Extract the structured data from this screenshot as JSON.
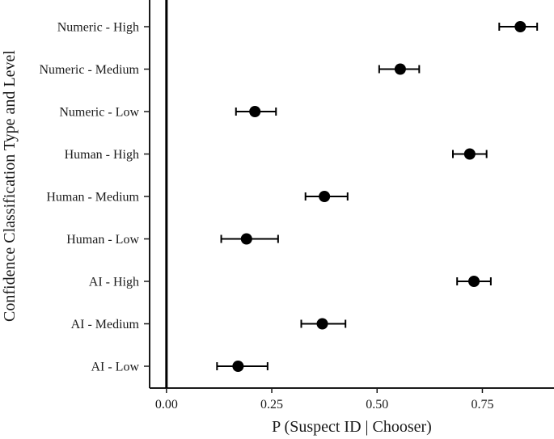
{
  "chart_data": {
    "type": "scatter",
    "subtype": "dot-whisker",
    "title": "",
    "xlabel": "P (Suspect ID | Chooser)",
    "ylabel": "Confidence Classification Type and Level",
    "xlim": [
      -0.04,
      0.92
    ],
    "xticks": [
      0.0,
      0.25,
      0.5,
      0.75
    ],
    "xtick_labels": [
      "0.00",
      "0.25",
      "0.50",
      "0.75"
    ],
    "reference_line_x": 0,
    "grid": false,
    "legend": "none",
    "categories": [
      "Numeric - High",
      "Numeric - Medium",
      "Numeric - Low",
      "Human - High",
      "Human - Medium",
      "Human - Low",
      "AI - High",
      "AI - Medium",
      "AI - Low"
    ],
    "values": [
      0.84,
      0.555,
      0.21,
      0.72,
      0.375,
      0.19,
      0.73,
      0.37,
      0.17
    ],
    "ci_low": [
      0.79,
      0.505,
      0.165,
      0.68,
      0.33,
      0.13,
      0.69,
      0.32,
      0.12
    ],
    "ci_high": [
      0.88,
      0.6,
      0.26,
      0.76,
      0.43,
      0.265,
      0.77,
      0.425,
      0.24
    ]
  }
}
